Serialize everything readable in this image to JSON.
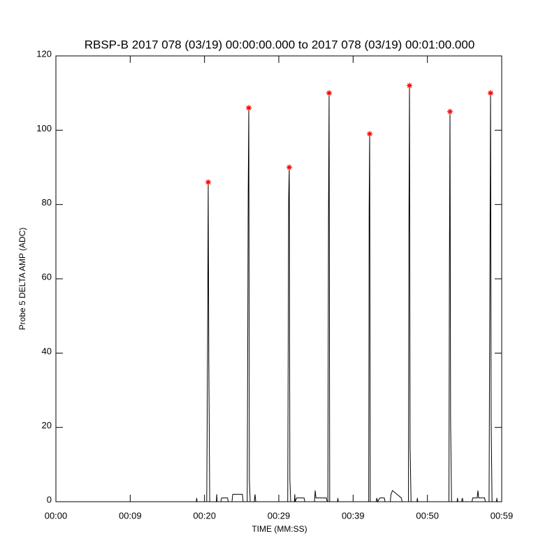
{
  "chart_data": {
    "type": "line",
    "title": "RBSP-B 2017 078 (03/19) 00:00:00.000 to 2017 078 (03/19) 00:01:00.000",
    "x_label": "TIME (MM:SS)",
    "y_label": "Probe 5 DELTA AMP (ADC)",
    "xlim": [
      0,
      60
    ],
    "ylim": [
      0,
      120
    ],
    "xticks": [
      {
        "value": 0,
        "label": "00:00"
      },
      {
        "value": 10,
        "label": "00:09"
      },
      {
        "value": 20,
        "label": "00:20"
      },
      {
        "value": 30,
        "label": "00:29"
      },
      {
        "value": 40,
        "label": "00:39"
      },
      {
        "value": 50,
        "label": "00:50"
      },
      {
        "value": 60,
        "label": "00:59"
      }
    ],
    "yticks": [
      0,
      20,
      40,
      60,
      80,
      100,
      120
    ],
    "series": [
      {
        "type": "line",
        "color": "#000000",
        "x": [
          0,
          18.9,
          18.95,
          19.0,
          20.3,
          20.42,
          20.5,
          20.58,
          20.7,
          21.6,
          21.65,
          21.7,
          22.2,
          22.3,
          23.1,
          23.2,
          23.7,
          23.8,
          25.1,
          25.2,
          25.75,
          25.88,
          25.96,
          26.04,
          26.15,
          26.7,
          26.8,
          26.9,
          31.2,
          31.33,
          31.41,
          31.49,
          31.6,
          32.1,
          32.15,
          32.2,
          32.4,
          33.4,
          33.5,
          34.8,
          34.9,
          35.0,
          36.4,
          36.5,
          36.6,
          36.69,
          36.77,
          36.85,
          37.9,
          37.95,
          38.0,
          42.1,
          42.16,
          42.23,
          42.31,
          43.1,
          43.2,
          43.3,
          43.6,
          44.2,
          44.3,
          45.0,
          45.1,
          45.3,
          45.9,
          46.5,
          46.6,
          47.45,
          47.51,
          47.59,
          47.67,
          47.8,
          48.6,
          48.65,
          48.7,
          52.9,
          52.96,
          53.04,
          53.12,
          53.25,
          54.0,
          54.05,
          54.1,
          54.6,
          54.7,
          54.8,
          56.0,
          56.1,
          56.7,
          56.8,
          56.9,
          57.7,
          57.8,
          58.3,
          58.42,
          58.5,
          58.58,
          58.7,
          59.3,
          59.35,
          59.4,
          60
        ],
        "values": [
          0,
          0,
          1,
          0,
          0,
          44,
          86,
          38,
          0,
          0,
          2,
          0,
          0,
          1,
          1,
          0,
          0,
          2,
          2,
          0,
          0,
          83,
          106,
          6,
          0,
          0,
          2,
          0,
          0,
          82,
          90,
          6,
          0,
          0,
          2,
          0,
          1,
          1,
          0,
          0,
          3,
          1,
          1,
          0,
          0,
          77,
          110,
          0,
          0,
          1,
          0,
          0,
          79,
          99,
          0,
          0,
          1,
          0,
          1,
          1,
          0,
          0,
          2,
          3,
          2,
          1,
          0,
          0,
          72,
          112,
          15,
          0,
          0,
          1,
          0,
          0,
          61,
          105,
          22,
          0,
          0,
          1,
          0,
          0,
          1,
          0,
          0,
          1,
          1,
          3,
          1,
          1,
          0,
          0,
          66,
          110,
          22,
          0,
          0,
          1,
          0,
          0
        ]
      },
      {
        "type": "scatter",
        "color": "#ff0000",
        "x": [
          20.5,
          25.96,
          31.41,
          36.77,
          42.23,
          47.59,
          53.04,
          58.5
        ],
        "values": [
          86,
          106,
          90,
          110,
          99,
          112,
          105,
          110
        ]
      }
    ]
  }
}
